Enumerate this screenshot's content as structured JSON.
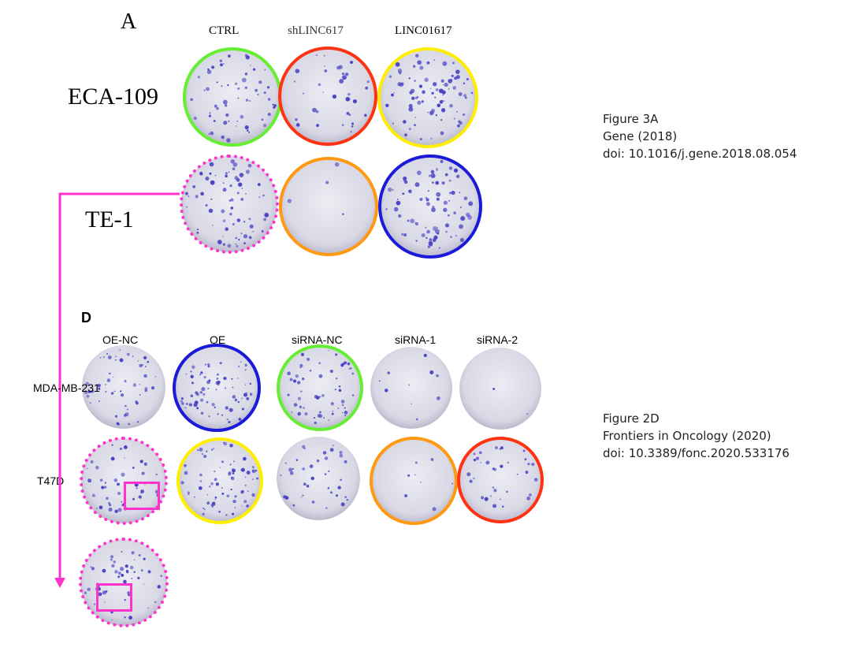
{
  "panel_a": {
    "letter": "A",
    "col_labels": [
      "CTRL",
      "shLINC617",
      "LINC01617"
    ],
    "row_labels": [
      "ECA-109",
      "TE-1"
    ]
  },
  "panel_d": {
    "letter": "D",
    "col_labels": [
      "OE-NC",
      "OE",
      "siRNA-NC",
      "siRNA-1",
      "siRNA-2"
    ],
    "row_labels": [
      "MDA-MB-231",
      "T47D"
    ]
  },
  "citation_a": {
    "line1": "Figure 3A",
    "line2": "Gene (2018)",
    "line3": "doi: 10.1016/j.gene.2018.08.054"
  },
  "citation_d": {
    "line1": "Figure 2D",
    "line2": "Frontiers in Oncology (2020)",
    "line3": "doi: 10.3389/fonc.2020.533176"
  },
  "colors": {
    "green": "#66ee33",
    "red": "#ff3311",
    "yellow": "#ffee00",
    "orange": "#ff9911",
    "blue": "#1a1ad8",
    "magenta": "#ff33cc",
    "colony": "#4b3fc4",
    "plate": "#d9d9e6"
  }
}
